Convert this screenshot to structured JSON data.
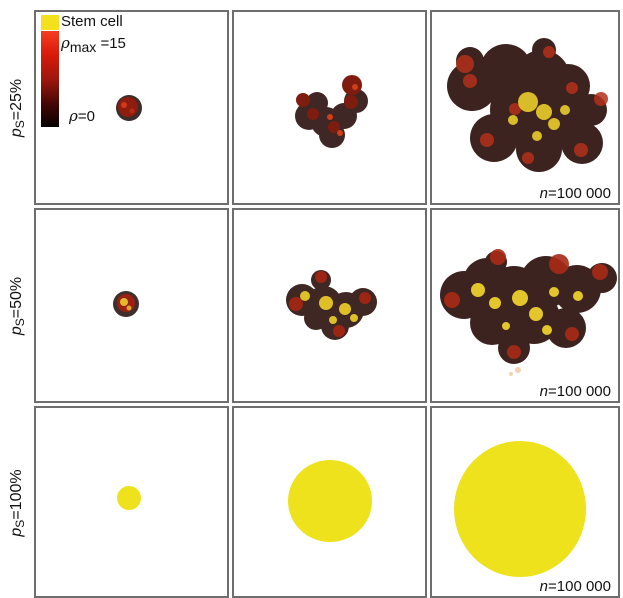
{
  "legend": {
    "stem_label": "Stem cell",
    "rho_symbol": "ρ",
    "max_sub": "max",
    "max_value": "=15",
    "min_label": "=0",
    "stem_color": "#f2e11c",
    "high_color": "#d91b0a",
    "low_color": "#050000"
  },
  "rows": [
    {
      "p_symbol": "p",
      "p_sub": "S",
      "p_value": "=25%",
      "n_symbol": "n",
      "n_value": "=100 000",
      "cluster_type": "heterogeneous-clumps"
    },
    {
      "p_symbol": "p",
      "p_sub": "S",
      "p_value": "=50%",
      "n_symbol": "n",
      "n_value": "=100 000",
      "cluster_type": "heterogeneous-clumps"
    },
    {
      "p_symbol": "p",
      "p_sub": "S",
      "p_value": "=100%",
      "n_symbol": "n",
      "n_value": "=100 000",
      "cluster_type": "solid-sphere"
    }
  ]
}
